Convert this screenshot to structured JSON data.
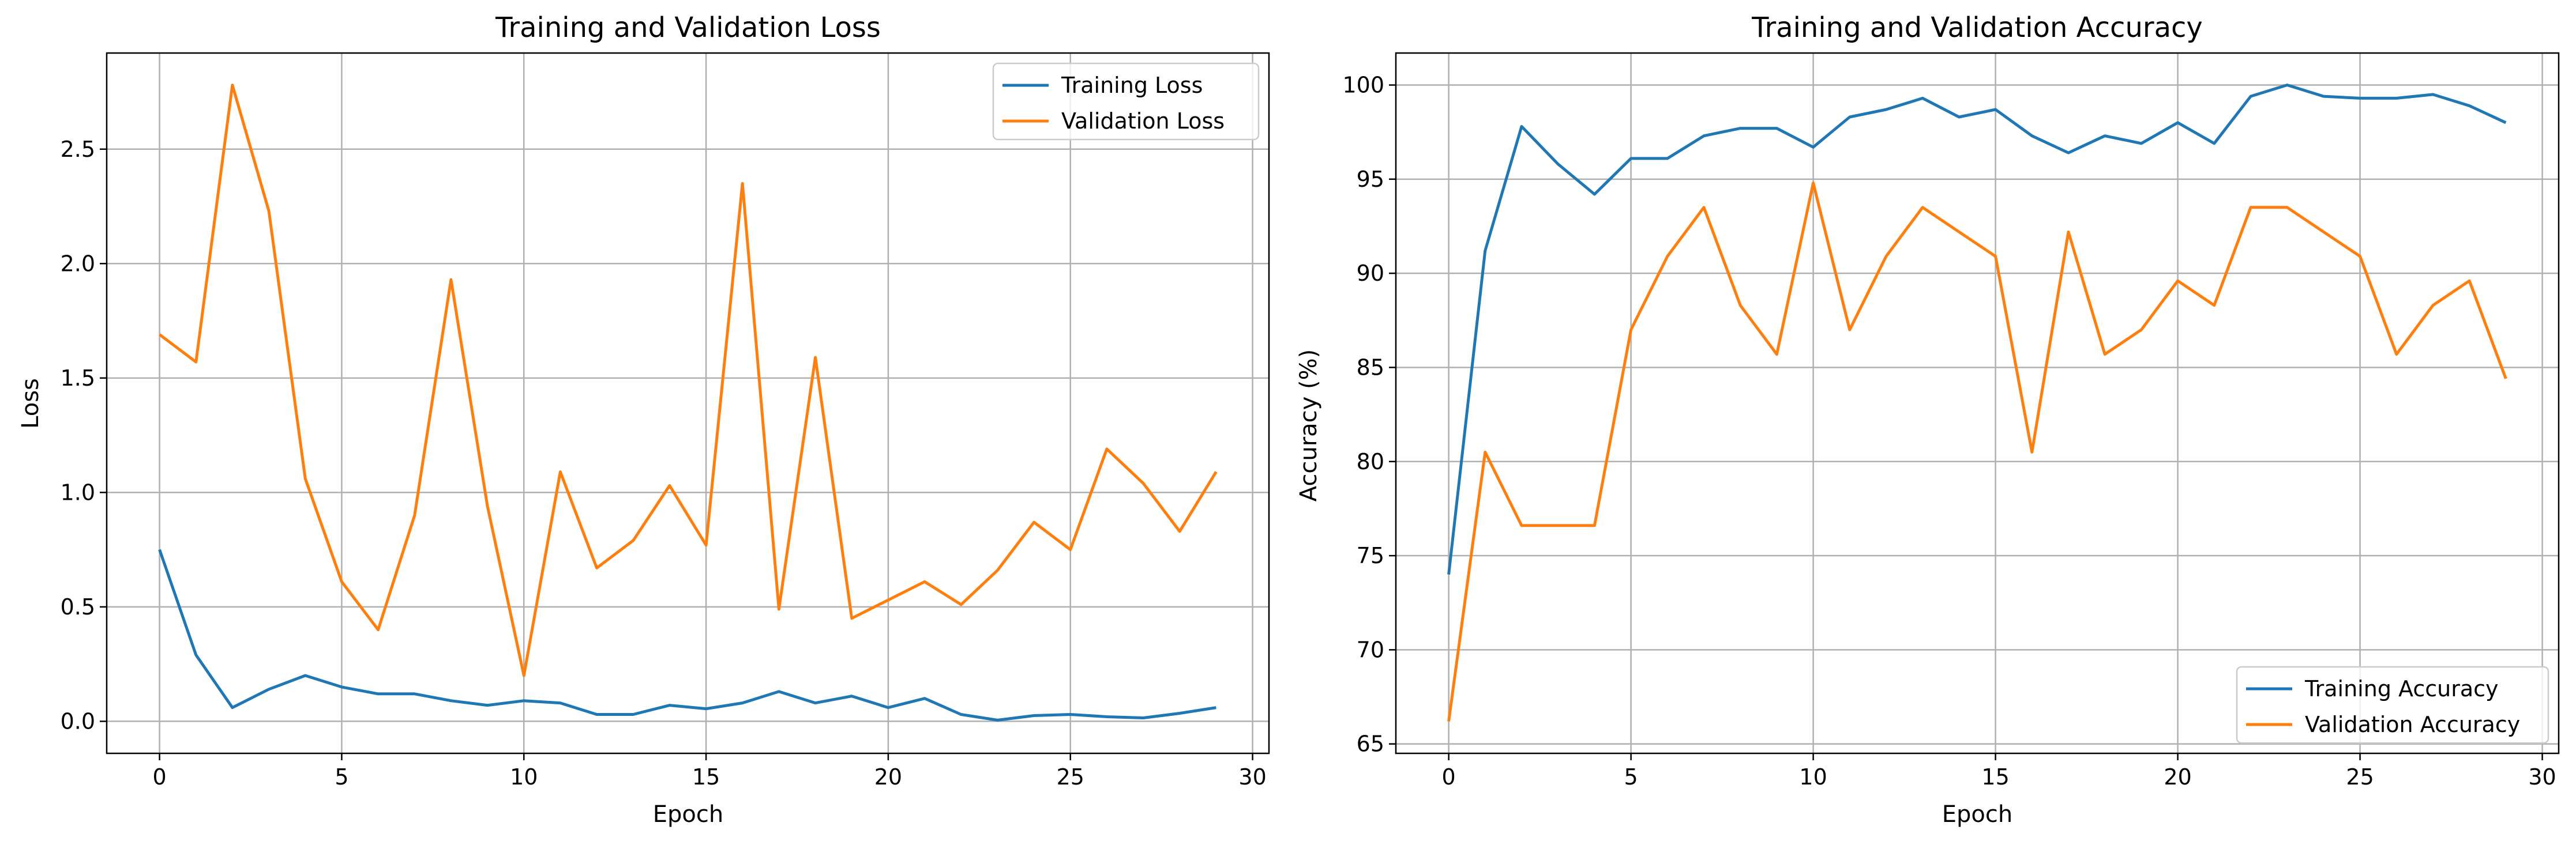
{
  "chart_data": [
    {
      "type": "line",
      "title": "Training and Validation Loss",
      "xlabel": "Epoch",
      "ylabel": "Loss",
      "xlim": [
        -1.45,
        30.45
      ],
      "ylim": [
        -0.14,
        2.92
      ],
      "xticks": [
        0,
        5,
        10,
        15,
        20,
        25,
        30
      ],
      "yticks": [
        0.0,
        0.5,
        1.0,
        1.5,
        2.0,
        2.5
      ],
      "ytick_format": "1",
      "grid": true,
      "legend_position": "top-right",
      "x": [
        0,
        1,
        2,
        3,
        4,
        5,
        6,
        7,
        8,
        9,
        10,
        11,
        12,
        13,
        14,
        15,
        16,
        17,
        18,
        19,
        20,
        21,
        22,
        23,
        24,
        25,
        26,
        27,
        28,
        29
      ],
      "series": [
        {
          "name": "Training Loss",
          "color": "#1f77b4",
          "values": [
            0.75,
            0.29,
            0.06,
            0.14,
            0.2,
            0.15,
            0.12,
            0.12,
            0.09,
            0.07,
            0.09,
            0.08,
            0.03,
            0.03,
            0.07,
            0.055,
            0.08,
            0.13,
            0.08,
            0.11,
            0.06,
            0.1,
            0.03,
            0.005,
            0.025,
            0.03,
            0.02,
            0.015,
            0.035,
            0.06
          ]
        },
        {
          "name": "Validation Loss",
          "color": "#ff7f0e",
          "values": [
            1.69,
            1.57,
            2.78,
            2.23,
            1.06,
            0.61,
            0.4,
            0.9,
            1.93,
            0.94,
            0.2,
            1.09,
            0.67,
            0.79,
            1.03,
            0.77,
            2.35,
            0.49,
            1.59,
            0.45,
            0.53,
            0.61,
            0.51,
            0.66,
            0.87,
            0.75,
            1.19,
            1.04,
            0.83,
            1.09
          ]
        }
      ]
    },
    {
      "type": "line",
      "title": "Training and Validation Accuracy",
      "xlabel": "Epoch",
      "ylabel": "Accuracy (%)",
      "xlim": [
        -1.45,
        30.45
      ],
      "ylim": [
        64.5,
        101.7
      ],
      "xticks": [
        0,
        5,
        10,
        15,
        20,
        25,
        30
      ],
      "yticks": [
        65,
        70,
        75,
        80,
        85,
        90,
        95,
        100
      ],
      "ytick_format": "0",
      "grid": true,
      "legend_position": "bottom-right",
      "x": [
        0,
        1,
        2,
        3,
        4,
        5,
        6,
        7,
        8,
        9,
        10,
        11,
        12,
        13,
        14,
        15,
        16,
        17,
        18,
        19,
        20,
        21,
        22,
        23,
        24,
        25,
        26,
        27,
        28,
        29
      ],
      "series": [
        {
          "name": "Training Accuracy",
          "color": "#1f77b4",
          "values": [
            74.0,
            91.2,
            97.8,
            95.8,
            94.2,
            96.1,
            96.1,
            97.3,
            97.7,
            97.7,
            96.7,
            98.3,
            98.7,
            99.3,
            98.3,
            98.7,
            97.3,
            96.4,
            97.3,
            96.9,
            98.0,
            96.9,
            99.4,
            100.0,
            99.4,
            99.3,
            99.3,
            99.5,
            98.9,
            98.0
          ]
        },
        {
          "name": "Validation Accuracy",
          "color": "#ff7f0e",
          "values": [
            66.2,
            80.5,
            76.6,
            76.6,
            76.6,
            87.0,
            90.9,
            93.5,
            88.3,
            85.7,
            94.8,
            87.0,
            90.9,
            93.5,
            92.2,
            90.9,
            80.5,
            92.2,
            85.7,
            87.0,
            89.6,
            88.3,
            93.5,
            93.5,
            92.2,
            90.9,
            85.7,
            88.3,
            89.6,
            84.4
          ]
        }
      ]
    }
  ]
}
